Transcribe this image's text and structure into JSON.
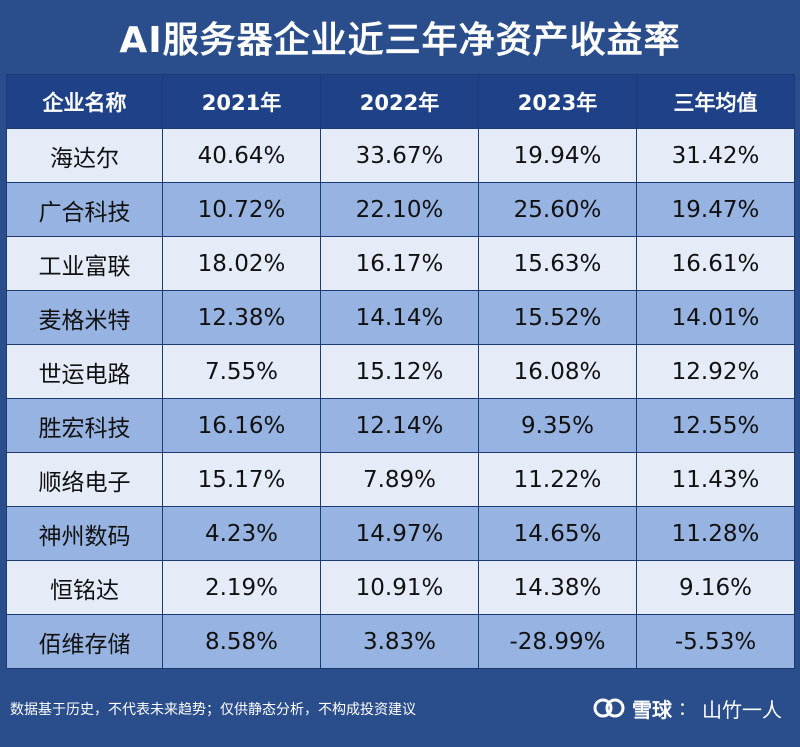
{
  "title": "AI服务器企业近三年净资产收益率",
  "table": {
    "headers": [
      "企业名称",
      "2021年",
      "2022年",
      "2023年",
      "三年均值"
    ],
    "rows": [
      [
        "海达尔",
        "40.64%",
        "33.67%",
        "19.94%",
        "31.42%"
      ],
      [
        "广合科技",
        "10.72%",
        "22.10%",
        "25.60%",
        "19.47%"
      ],
      [
        "工业富联",
        "18.02%",
        "16.17%",
        "15.63%",
        "16.61%"
      ],
      [
        "麦格米特",
        "12.38%",
        "14.14%",
        "15.52%",
        "14.01%"
      ],
      [
        "世运电路",
        "7.55%",
        "15.12%",
        "16.08%",
        "12.92%"
      ],
      [
        "胜宏科技",
        "16.16%",
        "12.14%",
        "9.35%",
        "12.55%"
      ],
      [
        "顺络电子",
        "15.17%",
        "7.89%",
        "11.22%",
        "11.43%"
      ],
      [
        "神州数码",
        "4.23%",
        "14.97%",
        "14.65%",
        "11.28%"
      ],
      [
        "恒铭达",
        "2.19%",
        "10.91%",
        "14.38%",
        "9.16%"
      ],
      [
        "佰维存储",
        "8.58%",
        "3.83%",
        "-28.99%",
        "-5.53%"
      ]
    ]
  },
  "footer": {
    "disclaimer": "数据基于历史，不代表未来趋势；仅供静态分析，不构成投资建议",
    "watermark": {
      "site": "雪球",
      "separator": "：",
      "author": "山竹一人",
      "logo_icon": "xueqiu-logo-icon"
    }
  },
  "colors": {
    "background": "#2a4d8c",
    "header_bg": "#1e4187",
    "row_light": "#e5ecf7",
    "row_blue": "#97b3e1"
  }
}
